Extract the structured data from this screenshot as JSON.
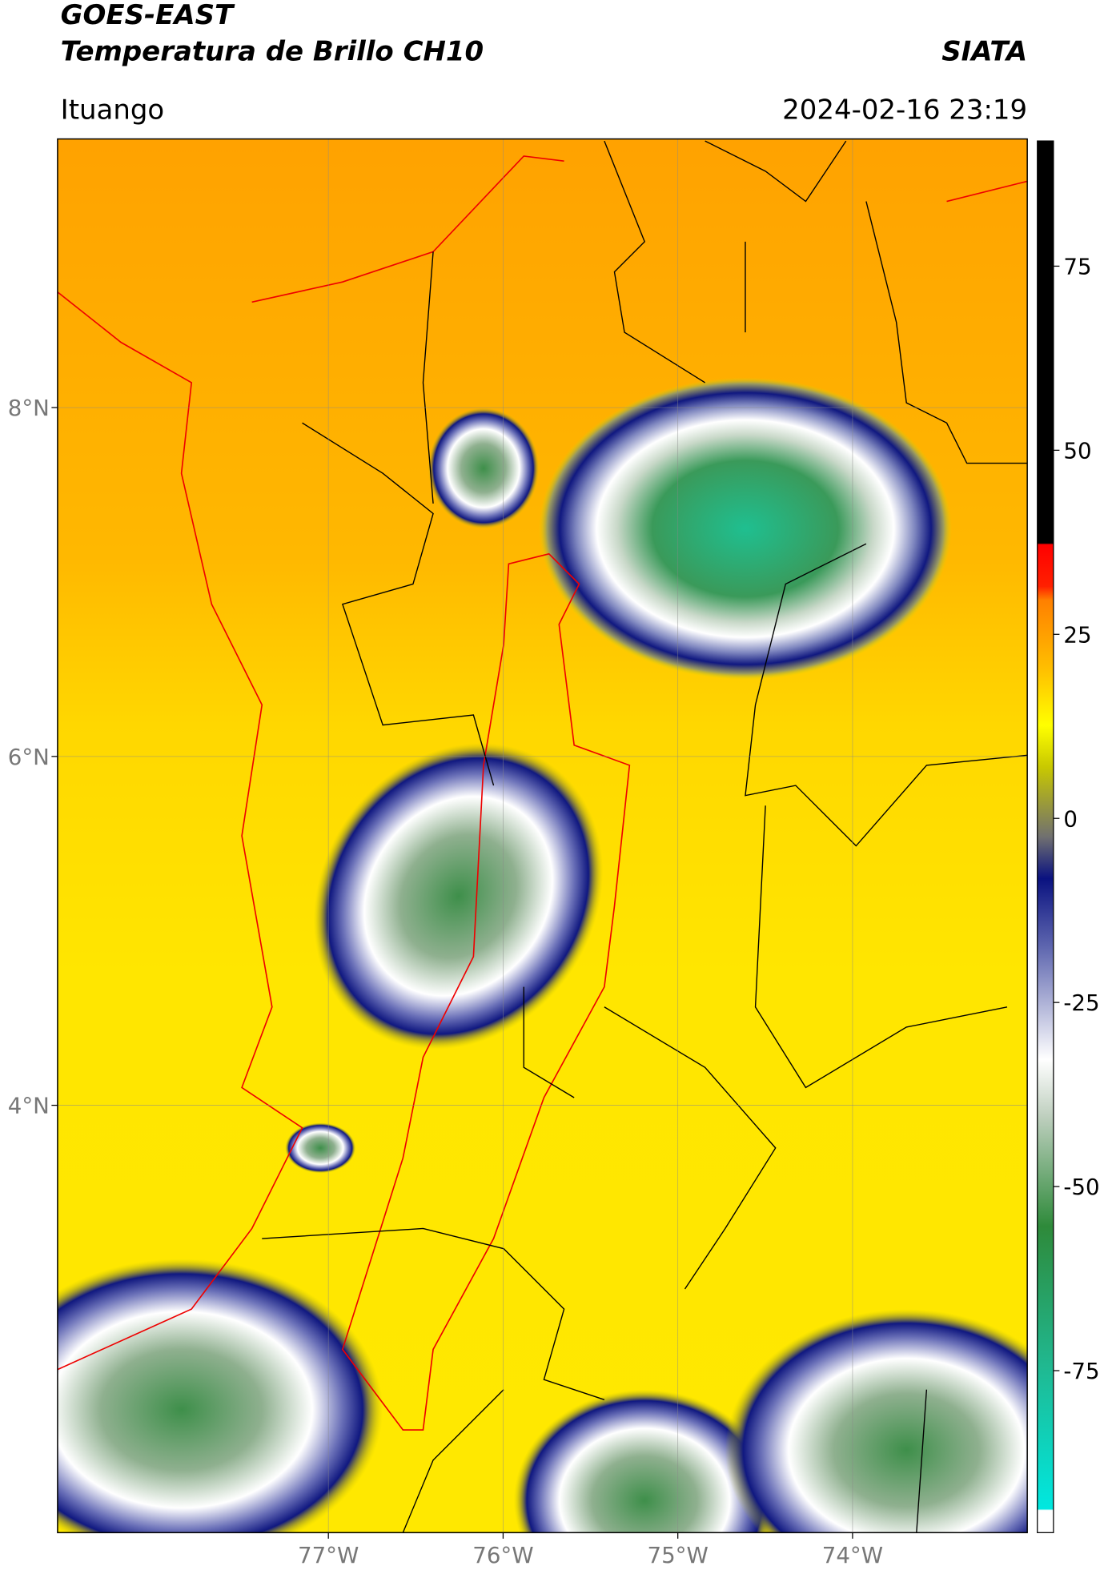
{
  "header": {
    "title": "GOES-EAST",
    "subtitle": "Temperatura de Brillo CH10",
    "source": "SIATA",
    "region": "Ituango",
    "datetime": "2024-02-16 23:19"
  },
  "map": {
    "xlim": [
      -78.55,
      -73.0
    ],
    "ylim": [
      1.55,
      9.54
    ],
    "xticks": [
      {
        "value": -77,
        "label": "77°W"
      },
      {
        "value": -76,
        "label": "76°W"
      },
      {
        "value": -75,
        "label": "75°W"
      },
      {
        "value": -74,
        "label": "74°W"
      }
    ],
    "yticks": [
      {
        "value": 8,
        "label": "8°N"
      },
      {
        "value": 6,
        "label": "6°N"
      },
      {
        "value": 4,
        "label": "4°N"
      }
    ],
    "grid": true
  },
  "colorbar": {
    "lim": [
      -97,
      92
    ],
    "ticks": [
      75,
      50,
      25,
      0,
      -25,
      -50,
      -75
    ]
  }
}
